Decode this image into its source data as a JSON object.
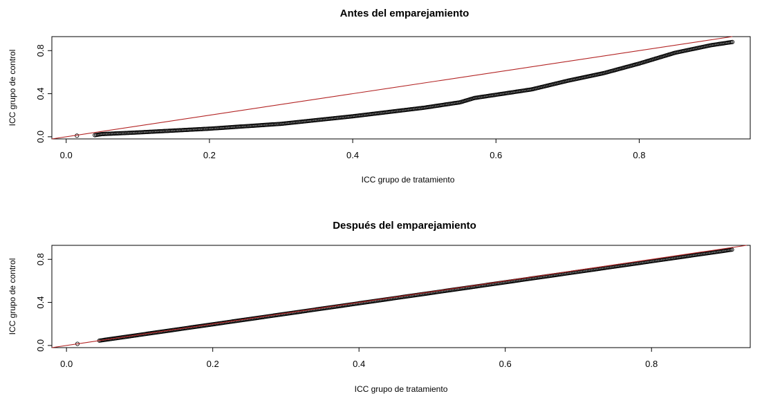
{
  "chart_data": [
    {
      "type": "scatter",
      "title": "Antes del emparejamiento",
      "xlabel": "ICC grupo de tratamiento",
      "ylabel": "ICC grupo de control",
      "xlim": [
        -0.02,
        0.955
      ],
      "ylim": [
        -0.02,
        0.93
      ],
      "xticks": [
        0.0,
        0.2,
        0.4,
        0.6,
        0.8
      ],
      "xtick_labels": [
        "0.0",
        "0.2",
        "0.4",
        "0.6",
        "0.8"
      ],
      "yticks": [
        0.0,
        0.4,
        0.8
      ],
      "ytick_labels": [
        "0.0",
        "0.4",
        "0.8"
      ],
      "grid": false,
      "reference_line": {
        "slope": 1,
        "intercept": 0,
        "color": "#b22222"
      },
      "point_color": "#000000",
      "curve_knots": {
        "x": [
          0.015,
          0.04,
          0.05,
          0.1,
          0.2,
          0.3,
          0.4,
          0.45,
          0.5,
          0.55,
          0.57,
          0.6,
          0.65,
          0.7,
          0.75,
          0.8,
          0.85,
          0.9,
          0.93
        ],
        "y": [
          0.01,
          0.015,
          0.025,
          0.04,
          0.075,
          0.12,
          0.19,
          0.23,
          0.27,
          0.32,
          0.36,
          0.39,
          0.44,
          0.52,
          0.59,
          0.68,
          0.78,
          0.85,
          0.88
        ]
      }
    },
    {
      "type": "scatter",
      "title": "Después del emparejamiento",
      "xlabel": "ICC grupo de tratamiento",
      "ylabel": "ICC grupo de control",
      "xlim": [
        -0.02,
        0.935
      ],
      "ylim": [
        -0.02,
        0.93
      ],
      "xticks": [
        0.0,
        0.2,
        0.4,
        0.6,
        0.8
      ],
      "xtick_labels": [
        "0.0",
        "0.2",
        "0.4",
        "0.6",
        "0.8"
      ],
      "yticks": [
        0.0,
        0.4,
        0.8
      ],
      "ytick_labels": [
        "0.0",
        "0.4",
        "0.8"
      ],
      "grid": false,
      "reference_line": {
        "slope": 1,
        "intercept": 0,
        "color": "#b22222"
      },
      "point_color": "#000000",
      "curve_knots": {
        "x": [
          0.015,
          0.045,
          0.9,
          0.91
        ],
        "y": [
          0.015,
          0.045,
          0.88,
          0.89
        ]
      }
    }
  ]
}
